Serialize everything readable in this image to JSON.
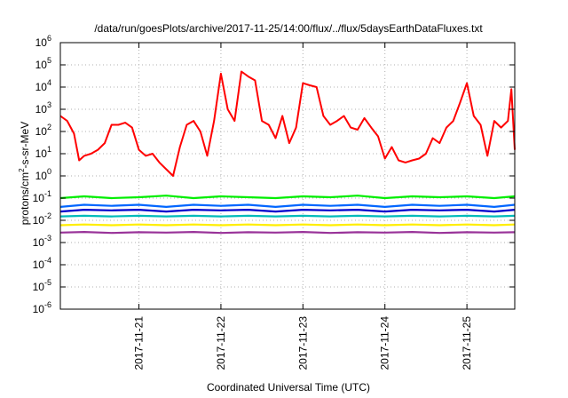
{
  "chart_data": {
    "type": "line",
    "title": "/data/run/goesPlots/archive/2017-11-25/14:00/flux/../flux/5daysEarthDataFluxes.txt",
    "xlabel": "Coordinated Universal Time (UTC)",
    "ylabel": {
      "prefix": "protons/cm",
      "sup": "2",
      "suffix": "-s-sr-MeV"
    },
    "y_scale": "log",
    "ylim": [
      1e-06,
      1000000.0
    ],
    "xlim": [
      "2017-11-20 01:00",
      "2017-11-25 14:00"
    ],
    "grid": true,
    "legend": "none",
    "y_ticks": [
      {
        "value": 1e-06,
        "base": "10",
        "exp": "-6"
      },
      {
        "value": 1e-05,
        "base": "10",
        "exp": "-5"
      },
      {
        "value": 0.0001,
        "base": "10",
        "exp": "-4"
      },
      {
        "value": 0.001,
        "base": "10",
        "exp": "-3"
      },
      {
        "value": 0.01,
        "base": "10",
        "exp": "-2"
      },
      {
        "value": 0.1,
        "base": "10",
        "exp": "-1"
      },
      {
        "value": 1.0,
        "base": "10",
        "exp": "0"
      },
      {
        "value": 10.0,
        "base": "10",
        "exp": "1"
      },
      {
        "value": 100.0,
        "base": "10",
        "exp": "2"
      },
      {
        "value": 1000.0,
        "base": "10",
        "exp": "3"
      },
      {
        "value": 10000.0,
        "base": "10",
        "exp": "4"
      },
      {
        "value": 100000.0,
        "base": "10",
        "exp": "5"
      },
      {
        "value": 1000000.0,
        "base": "10",
        "exp": "6"
      }
    ],
    "x_ticks": [
      {
        "value": "2017-11-21 00:00",
        "label": "2017-11-21"
      },
      {
        "value": "2017-11-22 00:00",
        "label": "2017-11-22"
      },
      {
        "value": "2017-11-23 00:00",
        "label": "2017-11-23"
      },
      {
        "value": "2017-11-24 00:00",
        "label": "2017-11-24"
      },
      {
        "value": "2017-11-25 00:00",
        "label": "2017-11-25"
      }
    ],
    "series": [
      {
        "color": "#ff0000",
        "x": [
          "2017-11-20 01:00",
          "2017-11-20 03:00",
          "2017-11-20 05:00",
          "2017-11-20 06:30",
          "2017-11-20 08:00",
          "2017-11-20 10:00",
          "2017-11-20 12:00",
          "2017-11-20 14:00",
          "2017-11-20 16:00",
          "2017-11-20 18:00",
          "2017-11-20 20:00",
          "2017-11-20 22:00",
          "2017-11-21 00:00",
          "2017-11-21 02:00",
          "2017-11-21 04:00",
          "2017-11-21 06:00",
          "2017-11-21 08:00",
          "2017-11-21 10:00",
          "2017-11-21 12:00",
          "2017-11-21 14:00",
          "2017-11-21 16:00",
          "2017-11-21 18:00",
          "2017-11-21 20:00",
          "2017-11-21 22:00",
          "2017-11-22 00:00",
          "2017-11-22 02:00",
          "2017-11-22 04:00",
          "2017-11-22 06:00",
          "2017-11-22 08:00",
          "2017-11-22 10:00",
          "2017-11-22 12:00",
          "2017-11-22 14:00",
          "2017-11-22 16:00",
          "2017-11-22 18:00",
          "2017-11-22 20:00",
          "2017-11-22 22:00",
          "2017-11-23 00:00",
          "2017-11-23 02:00",
          "2017-11-23 04:00",
          "2017-11-23 06:00",
          "2017-11-23 08:00",
          "2017-11-23 10:00",
          "2017-11-23 12:00",
          "2017-11-23 14:00",
          "2017-11-23 16:00",
          "2017-11-23 18:00",
          "2017-11-23 20:00",
          "2017-11-23 22:00",
          "2017-11-24 00:00",
          "2017-11-24 02:00",
          "2017-11-24 04:00",
          "2017-11-24 06:00",
          "2017-11-24 08:00",
          "2017-11-24 10:00",
          "2017-11-24 12:00",
          "2017-11-24 14:00",
          "2017-11-24 16:00",
          "2017-11-24 18:00",
          "2017-11-24 20:00",
          "2017-11-24 22:00",
          "2017-11-25 00:00",
          "2017-11-25 02:00",
          "2017-11-25 04:00",
          "2017-11-25 06:00",
          "2017-11-25 08:00",
          "2017-11-25 10:00",
          "2017-11-25 12:00",
          "2017-11-25 13:00",
          "2017-11-25 14:00"
        ],
        "y": [
          500,
          300,
          80,
          5,
          8,
          10,
          15,
          30,
          200,
          200,
          250,
          150,
          15,
          8,
          10,
          4,
          2,
          1,
          20,
          200,
          300,
          100,
          8,
          300,
          40000,
          1000,
          300,
          50000,
          30000,
          20000,
          300,
          200,
          50,
          500,
          30,
          150,
          15000,
          12000,
          10000,
          500,
          200,
          300,
          500,
          150,
          120,
          400,
          150,
          60,
          6,
          20,
          5,
          4,
          5,
          6,
          10,
          50,
          30,
          150,
          300,
          2000,
          15000,
          500,
          200,
          8,
          300,
          150,
          300,
          8000,
          15
        ]
      },
      {
        "color": "#00ee00",
        "x": [
          "2017-11-20 01:00",
          "2017-11-20 08:00",
          "2017-11-20 16:00",
          "2017-11-21 00:00",
          "2017-11-21 08:00",
          "2017-11-21 16:00",
          "2017-11-22 00:00",
          "2017-11-22 08:00",
          "2017-11-22 16:00",
          "2017-11-23 00:00",
          "2017-11-23 08:00",
          "2017-11-23 16:00",
          "2017-11-24 00:00",
          "2017-11-24 08:00",
          "2017-11-24 16:00",
          "2017-11-25 00:00",
          "2017-11-25 08:00",
          "2017-11-25 14:00"
        ],
        "y": [
          0.1,
          0.12,
          0.1,
          0.11,
          0.13,
          0.1,
          0.12,
          0.11,
          0.1,
          0.12,
          0.11,
          0.13,
          0.1,
          0.12,
          0.11,
          0.12,
          0.1,
          0.12
        ]
      },
      {
        "color": "#0066ff",
        "x": [
          "2017-11-20 01:00",
          "2017-11-20 08:00",
          "2017-11-20 16:00",
          "2017-11-21 00:00",
          "2017-11-21 08:00",
          "2017-11-21 16:00",
          "2017-11-22 00:00",
          "2017-11-22 08:00",
          "2017-11-22 16:00",
          "2017-11-23 00:00",
          "2017-11-23 08:00",
          "2017-11-23 16:00",
          "2017-11-24 00:00",
          "2017-11-24 08:00",
          "2017-11-24 16:00",
          "2017-11-25 00:00",
          "2017-11-25 08:00",
          "2017-11-25 14:00"
        ],
        "y": [
          0.04,
          0.05,
          0.045,
          0.05,
          0.04,
          0.05,
          0.045,
          0.05,
          0.04,
          0.05,
          0.045,
          0.05,
          0.04,
          0.05,
          0.045,
          0.05,
          0.04,
          0.05
        ]
      },
      {
        "color": "#0000cc",
        "x": [
          "2017-11-20 01:00",
          "2017-11-20 08:00",
          "2017-11-20 16:00",
          "2017-11-21 00:00",
          "2017-11-21 08:00",
          "2017-11-21 16:00",
          "2017-11-22 00:00",
          "2017-11-22 08:00",
          "2017-11-22 16:00",
          "2017-11-23 00:00",
          "2017-11-23 08:00",
          "2017-11-23 16:00",
          "2017-11-24 00:00",
          "2017-11-24 08:00",
          "2017-11-24 16:00",
          "2017-11-25 00:00",
          "2017-11-25 08:00",
          "2017-11-25 14:00"
        ],
        "y": [
          0.025,
          0.03,
          0.028,
          0.03,
          0.025,
          0.03,
          0.028,
          0.03,
          0.025,
          0.03,
          0.028,
          0.03,
          0.025,
          0.03,
          0.028,
          0.03,
          0.025,
          0.03
        ]
      },
      {
        "color": "#00bbbb",
        "x": [
          "2017-11-20 01:00",
          "2017-11-20 08:00",
          "2017-11-20 16:00",
          "2017-11-21 00:00",
          "2017-11-21 08:00",
          "2017-11-21 16:00",
          "2017-11-22 00:00",
          "2017-11-22 08:00",
          "2017-11-22 16:00",
          "2017-11-23 00:00",
          "2017-11-23 08:00",
          "2017-11-23 16:00",
          "2017-11-24 00:00",
          "2017-11-24 08:00",
          "2017-11-24 16:00",
          "2017-11-25 00:00",
          "2017-11-25 08:00",
          "2017-11-25 14:00"
        ],
        "y": [
          0.015,
          0.016,
          0.015,
          0.016,
          0.015,
          0.016,
          0.015,
          0.016,
          0.015,
          0.016,
          0.015,
          0.016,
          0.015,
          0.016,
          0.015,
          0.016,
          0.015,
          0.016
        ]
      },
      {
        "color": "#ffee00",
        "x": [
          "2017-11-20 01:00",
          "2017-11-20 08:00",
          "2017-11-20 16:00",
          "2017-11-21 00:00",
          "2017-11-21 08:00",
          "2017-11-21 16:00",
          "2017-11-22 00:00",
          "2017-11-22 08:00",
          "2017-11-22 16:00",
          "2017-11-23 00:00",
          "2017-11-23 08:00",
          "2017-11-23 16:00",
          "2017-11-24 00:00",
          "2017-11-24 08:00",
          "2017-11-24 16:00",
          "2017-11-25 00:00",
          "2017-11-25 08:00",
          "2017-11-25 14:00"
        ],
        "y": [
          0.006,
          0.0065,
          0.006,
          0.0065,
          0.006,
          0.0065,
          0.006,
          0.0065,
          0.006,
          0.0065,
          0.006,
          0.0065,
          0.006,
          0.0065,
          0.006,
          0.0065,
          0.006,
          0.0065
        ]
      },
      {
        "color": "#993399",
        "x": [
          "2017-11-20 01:00",
          "2017-11-20 08:00",
          "2017-11-20 16:00",
          "2017-11-21 00:00",
          "2017-11-21 08:00",
          "2017-11-21 16:00",
          "2017-11-22 00:00",
          "2017-11-22 08:00",
          "2017-11-22 16:00",
          "2017-11-23 00:00",
          "2017-11-23 08:00",
          "2017-11-23 16:00",
          "2017-11-24 00:00",
          "2017-11-24 08:00",
          "2017-11-24 16:00",
          "2017-11-25 00:00",
          "2017-11-25 08:00",
          "2017-11-25 14:00"
        ],
        "y": [
          0.0028,
          0.003,
          0.0027,
          0.0029,
          0.0028,
          0.003,
          0.0027,
          0.0029,
          0.0028,
          0.003,
          0.0027,
          0.0029,
          0.0028,
          0.003,
          0.0027,
          0.0029,
          0.0028,
          0.0029
        ]
      }
    ]
  }
}
